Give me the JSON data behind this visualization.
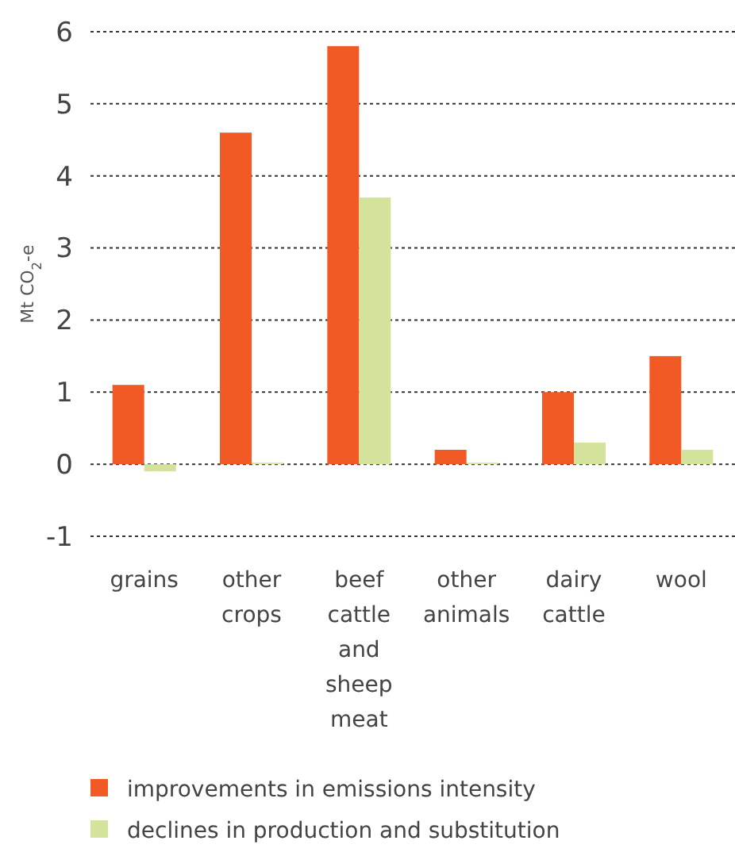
{
  "chart_data": {
    "type": "bar",
    "ylabel": "Mt CO$_{2}$-e",
    "categories": [
      "grains",
      "other crops",
      "beef cattle and sheep meat",
      "other animals",
      "dairy cattle",
      "wool"
    ],
    "series": [
      {
        "name": "improvements in emissions intensity",
        "color": "#f15a24",
        "values": [
          1.1,
          4.6,
          5.8,
          0.2,
          1.0,
          1.5
        ]
      },
      {
        "name": "declines in production and substitution",
        "color": "#d4e39b",
        "values": [
          -0.1,
          0.02,
          3.7,
          0.02,
          0.3,
          0.2
        ]
      }
    ],
    "ylim": [
      -1,
      6
    ],
    "yticks": [
      -1,
      0,
      1,
      2,
      3,
      4,
      5,
      6
    ],
    "grid": "y",
    "legend": "bottom"
  }
}
